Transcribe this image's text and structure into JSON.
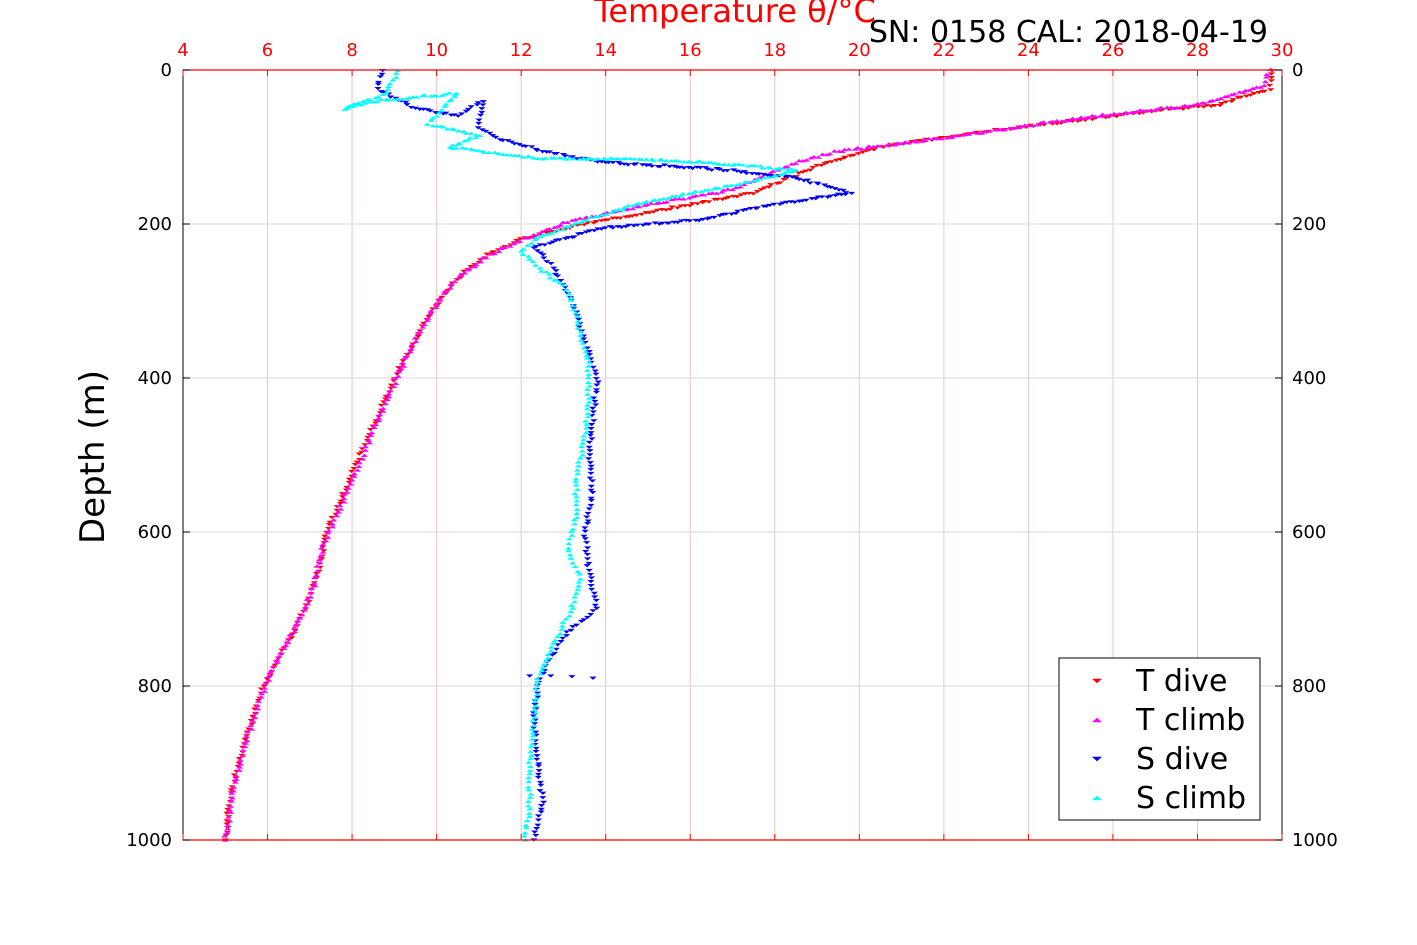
{
  "chart_data": {
    "type": "scatter",
    "title": "Temperature θ/°C",
    "subtitle": "SN: 0158  CAL: 2018-04-19",
    "xlabel": "Temperature θ/°C",
    "ylabel": "Depth (m)",
    "xlim": [
      4,
      30
    ],
    "ylim": [
      0,
      1000
    ],
    "y_reversed": true,
    "x_ticks": [
      "4",
      "6",
      "8",
      "10",
      "12",
      "14",
      "16",
      "18",
      "20",
      "22",
      "24",
      "26",
      "28",
      "30"
    ],
    "y_ticks": [
      "0",
      "200",
      "400",
      "600",
      "800",
      "1000"
    ],
    "grid": true,
    "legend_position": "bottom-right",
    "series": [
      {
        "name": "T dive",
        "color": "#ff0000",
        "marker": "triangle-down",
        "profile": [
          [
            29.8,
            0
          ],
          [
            29.7,
            25
          ],
          [
            28.5,
            45
          ],
          [
            26,
            60
          ],
          [
            23,
            80
          ],
          [
            20.5,
            100
          ],
          [
            19,
            125
          ],
          [
            17.5,
            160
          ],
          [
            15.5,
            180
          ],
          [
            13.5,
            200
          ],
          [
            12,
            220
          ],
          [
            11.2,
            240
          ],
          [
            10.6,
            265
          ],
          [
            10.2,
            290
          ],
          [
            9.8,
            320
          ],
          [
            9.4,
            360
          ],
          [
            9.0,
            400
          ],
          [
            8.6,
            450
          ],
          [
            8.2,
            500
          ],
          [
            7.8,
            550
          ],
          [
            7.4,
            600
          ],
          [
            7.2,
            650
          ],
          [
            6.9,
            700
          ],
          [
            6.4,
            750
          ],
          [
            5.9,
            800
          ],
          [
            5.6,
            850
          ],
          [
            5.3,
            900
          ],
          [
            5.1,
            950
          ],
          [
            5.0,
            1000
          ]
        ]
      },
      {
        "name": "T climb",
        "color": "#ff00ff",
        "marker": "triangle-up",
        "profile": [
          [
            29.7,
            0
          ],
          [
            29.6,
            20
          ],
          [
            28,
            45
          ],
          [
            25.5,
            60
          ],
          [
            23,
            80
          ],
          [
            21,
            95
          ],
          [
            19.5,
            105
          ],
          [
            18.5,
            120
          ],
          [
            17,
            155
          ],
          [
            15,
            175
          ],
          [
            13.2,
            195
          ],
          [
            11.8,
            225
          ],
          [
            11.1,
            245
          ],
          [
            10.5,
            270
          ],
          [
            10.1,
            295
          ],
          [
            9.7,
            330
          ],
          [
            9.3,
            370
          ],
          [
            8.9,
            420
          ],
          [
            8.5,
            470
          ],
          [
            8.2,
            510
          ],
          [
            7.7,
            570
          ],
          [
            7.3,
            620
          ],
          [
            7.1,
            670
          ],
          [
            6.7,
            720
          ],
          [
            6.2,
            770
          ],
          [
            5.8,
            820
          ],
          [
            5.5,
            870
          ],
          [
            5.2,
            930
          ],
          [
            5.0,
            1000
          ]
        ]
      },
      {
        "name": "S dive",
        "color": "#0000ff",
        "marker": "triangle-down",
        "profile": [
          [
            8.7,
            0
          ],
          [
            8.6,
            25
          ],
          [
            9.5,
            50
          ],
          [
            10.5,
            60
          ],
          [
            11.1,
            40
          ],
          [
            11,
            75
          ],
          [
            11.5,
            90
          ],
          [
            12.5,
            105
          ],
          [
            13.8,
            120
          ],
          [
            15.5,
            125
          ],
          [
            16.8,
            130
          ],
          [
            18.5,
            140
          ],
          [
            19.8,
            160
          ],
          [
            18,
            175
          ],
          [
            16.2,
            195
          ],
          [
            14,
            205
          ],
          [
            12.3,
            230
          ],
          [
            12.8,
            260
          ],
          [
            13.2,
            300
          ],
          [
            13.5,
            350
          ],
          [
            13.8,
            400
          ],
          [
            13.7,
            450
          ],
          [
            13.6,
            500
          ],
          [
            13.7,
            550
          ],
          [
            13.5,
            600
          ],
          [
            13.6,
            650
          ],
          [
            13.8,
            700
          ],
          [
            13.1,
            730
          ],
          [
            12.6,
            770
          ],
          [
            12.4,
            800
          ],
          [
            12.3,
            850
          ],
          [
            12.4,
            900
          ],
          [
            12.5,
            950
          ],
          [
            12.3,
            1000
          ]
        ]
      },
      {
        "name": "S climb",
        "color": "#00ffff",
        "marker": "triangle-up",
        "profile": [
          [
            9.1,
            0
          ],
          [
            8.8,
            30
          ],
          [
            7.8,
            50
          ],
          [
            8.5,
            40
          ],
          [
            10.5,
            30
          ],
          [
            9.8,
            70
          ],
          [
            11,
            85
          ],
          [
            10.3,
            100
          ],
          [
            12.5,
            115
          ],
          [
            14.5,
            115
          ],
          [
            16.5,
            120
          ],
          [
            18.5,
            130
          ],
          [
            17,
            150
          ],
          [
            15,
            170
          ],
          [
            13.5,
            195
          ],
          [
            12.3,
            220
          ],
          [
            12.0,
            235
          ],
          [
            12.5,
            260
          ],
          [
            13,
            280
          ],
          [
            13.2,
            300
          ],
          [
            13.4,
            340
          ],
          [
            13.6,
            380
          ],
          [
            13.6,
            430
          ],
          [
            13.5,
            480
          ],
          [
            13.3,
            530
          ],
          [
            13.3,
            580
          ],
          [
            13.1,
            620
          ],
          [
            13.4,
            660
          ],
          [
            13.2,
            700
          ],
          [
            12.8,
            740
          ],
          [
            12.4,
            790
          ],
          [
            12.3,
            840
          ],
          [
            12.2,
            900
          ],
          [
            12.2,
            950
          ],
          [
            12.1,
            1000
          ]
        ]
      }
    ],
    "isolated_points": [
      {
        "series": "S dive",
        "x": 12.2,
        "y": 787
      },
      {
        "series": "S dive",
        "x": 12.7,
        "y": 787
      },
      {
        "series": "S dive",
        "x": 13.2,
        "y": 788
      },
      {
        "series": "S dive",
        "x": 13.7,
        "y": 790
      }
    ]
  }
}
